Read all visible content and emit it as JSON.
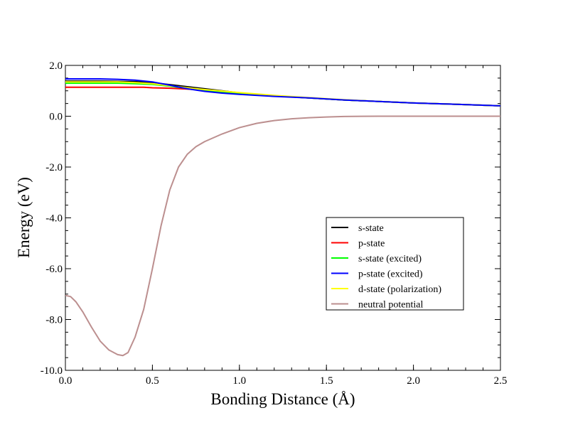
{
  "chart_data": {
    "type": "line",
    "title": "",
    "xlabel": "Bonding Distance (Å)",
    "ylabel": "Energy (eV)",
    "xlim": [
      0.0,
      2.5
    ],
    "ylim": [
      -10.0,
      2.0
    ],
    "x_ticks": [
      0.0,
      0.5,
      1.0,
      1.5,
      2.0,
      2.5
    ],
    "x_tick_labels": [
      "0.0",
      "0.5",
      "1.0",
      "1.5",
      "2.0",
      "2.5"
    ],
    "y_ticks": [
      -10.0,
      -8.0,
      -6.0,
      -4.0,
      -2.0,
      0.0,
      2.0
    ],
    "y_tick_labels": [
      "-10.0",
      "-8.0",
      "-6.0",
      "-4.0",
      "-2.0",
      "0.0",
      "2.0"
    ],
    "grid": false,
    "legend_position": "lower-right",
    "series": [
      {
        "name": "s-state",
        "color": "#000000",
        "x": [
          0.0,
          0.2,
          0.4,
          0.5,
          0.6,
          0.7,
          0.8,
          0.9,
          1.0,
          1.2,
          1.4,
          1.6,
          1.8,
          2.0,
          2.2,
          2.5
        ],
        "y": [
          1.38,
          1.38,
          1.36,
          1.32,
          1.24,
          1.16,
          1.08,
          1.0,
          0.92,
          0.8,
          0.72,
          0.64,
          0.58,
          0.52,
          0.48,
          0.41
        ]
      },
      {
        "name": "p-state",
        "color": "#ff0000",
        "x": [
          0.0,
          0.45,
          0.5,
          0.6,
          0.7,
          0.8,
          0.9,
          1.0,
          1.2,
          1.4,
          1.6,
          1.8,
          2.0,
          2.2,
          2.5
        ],
        "y": [
          1.14,
          1.14,
          1.12,
          1.1,
          1.07,
          1.02,
          0.96,
          0.9,
          0.8,
          0.72,
          0.64,
          0.58,
          0.52,
          0.48,
          0.41
        ]
      },
      {
        "name": "s-state (excited)",
        "color": "#00ff00",
        "x": [
          0.0,
          0.3,
          0.4,
          0.5,
          0.6,
          0.7,
          0.8,
          0.9,
          1.0,
          1.2,
          1.4,
          1.6,
          1.8,
          2.0,
          2.2,
          2.5
        ],
        "y": [
          1.3,
          1.3,
          1.28,
          1.25,
          1.18,
          1.1,
          1.02,
          0.95,
          0.9,
          0.8,
          0.72,
          0.64,
          0.58,
          0.52,
          0.48,
          0.41
        ]
      },
      {
        "name": "p-state (excited)",
        "color": "#0000ff",
        "x": [
          0.0,
          0.2,
          0.3,
          0.4,
          0.5,
          0.6,
          0.7,
          0.8,
          0.9,
          1.0,
          1.2,
          1.4,
          1.6,
          1.8,
          2.0,
          2.2,
          2.5
        ],
        "y": [
          1.47,
          1.47,
          1.45,
          1.42,
          1.35,
          1.22,
          1.08,
          0.98,
          0.91,
          0.86,
          0.78,
          0.72,
          0.64,
          0.58,
          0.52,
          0.48,
          0.41
        ]
      },
      {
        "name": "d-state (polarization)",
        "color": "#ffff00",
        "x": [
          0.0,
          0.3,
          0.4,
          0.5,
          0.6,
          0.7,
          0.8,
          0.9,
          1.0,
          1.2,
          1.4,
          1.6,
          1.8,
          2.0,
          2.2,
          2.5
        ],
        "y": [
          1.35,
          1.35,
          1.32,
          1.28,
          1.2,
          1.12,
          1.05,
          0.99,
          0.93,
          0.82,
          0.73,
          0.65,
          0.58,
          0.52,
          0.48,
          0.41
        ]
      },
      {
        "name": "neutral potential",
        "color": "#bc8f8f",
        "x": [
          0.0,
          0.03,
          0.06,
          0.1,
          0.15,
          0.2,
          0.25,
          0.3,
          0.33,
          0.36,
          0.4,
          0.45,
          0.5,
          0.55,
          0.6,
          0.65,
          0.7,
          0.75,
          0.8,
          0.9,
          1.0,
          1.1,
          1.2,
          1.3,
          1.4,
          1.5,
          1.6,
          1.8,
          2.0,
          2.2,
          2.5
        ],
        "y": [
          -7.05,
          -7.1,
          -7.3,
          -7.7,
          -8.3,
          -8.85,
          -9.2,
          -9.38,
          -9.42,
          -9.3,
          -8.7,
          -7.6,
          -6.0,
          -4.3,
          -2.9,
          -2.0,
          -1.5,
          -1.2,
          -1.0,
          -0.7,
          -0.45,
          -0.28,
          -0.17,
          -0.1,
          -0.06,
          -0.03,
          -0.01,
          0.0,
          0.0,
          0.0,
          0.0
        ]
      }
    ]
  }
}
